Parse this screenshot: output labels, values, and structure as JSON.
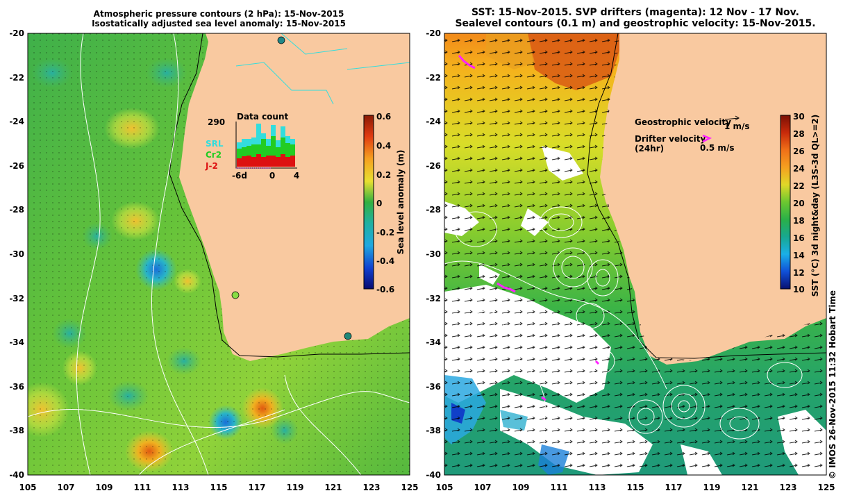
{
  "left_panel": {
    "title_line1": "Atmospheric pressure contours (2 hPa): 15-Nov-2015",
    "title_line2": "Isostatically adjusted sea level anomaly: 15-Nov-2015",
    "y_ticks": [
      "-20",
      "-22",
      "-24",
      "-26",
      "-28",
      "-30",
      "-32",
      "-34",
      "-36",
      "-38",
      "-40"
    ],
    "x_ticks": [
      "105",
      "107",
      "109",
      "111",
      "113",
      "115",
      "117",
      "119",
      "121",
      "123",
      "125"
    ],
    "colorbar": {
      "label": "Sea level anomaly (m)",
      "ticks": [
        "0.6",
        "0.4",
        "0.2",
        "0",
        "-0.2",
        "-0.4",
        "-0.6"
      ]
    },
    "data_count": {
      "title": "Data count",
      "max_label": "290",
      "legend": [
        {
          "label": "SRL",
          "color": "#33dddd"
        },
        {
          "label": "Cr2",
          "color": "#22cc22"
        },
        {
          "label": "J-2",
          "color": "#dd1111"
        }
      ],
      "x_labels": [
        "-6d",
        "0",
        "4"
      ]
    }
  },
  "right_panel": {
    "title_line1": "SST: 15-Nov-2015. SVP drifters (magenta): 12 Nov - 17 Nov.",
    "title_line2": "Sealevel contours (0.1 m) and geostrophic velocity: 15-Nov-2015.",
    "y_ticks": [
      "-20",
      "-22",
      "-24",
      "-26",
      "-28",
      "-30",
      "-32",
      "-34",
      "-36",
      "-38",
      "-40"
    ],
    "x_ticks": [
      "105",
      "107",
      "109",
      "111",
      "113",
      "115",
      "117",
      "119",
      "121",
      "123",
      "125"
    ],
    "geostrophic_label": "Geostrophic velocity",
    "geostrophic_scale": "1 m/s",
    "drifter_label_1": "Drifter velocity",
    "drifter_label_2": "(24hr)",
    "drifter_scale": "0.5 m/s",
    "colorbar": {
      "label": "SST (°C) 3d night&day (L3S-3d QL>=2)",
      "ticks": [
        "30",
        "28",
        "26",
        "24",
        "22",
        "20",
        "18",
        "16",
        "14",
        "12",
        "10"
      ]
    }
  },
  "copyright": "© IMOS 26-Nov-2015 11:32 Hobart Time"
}
